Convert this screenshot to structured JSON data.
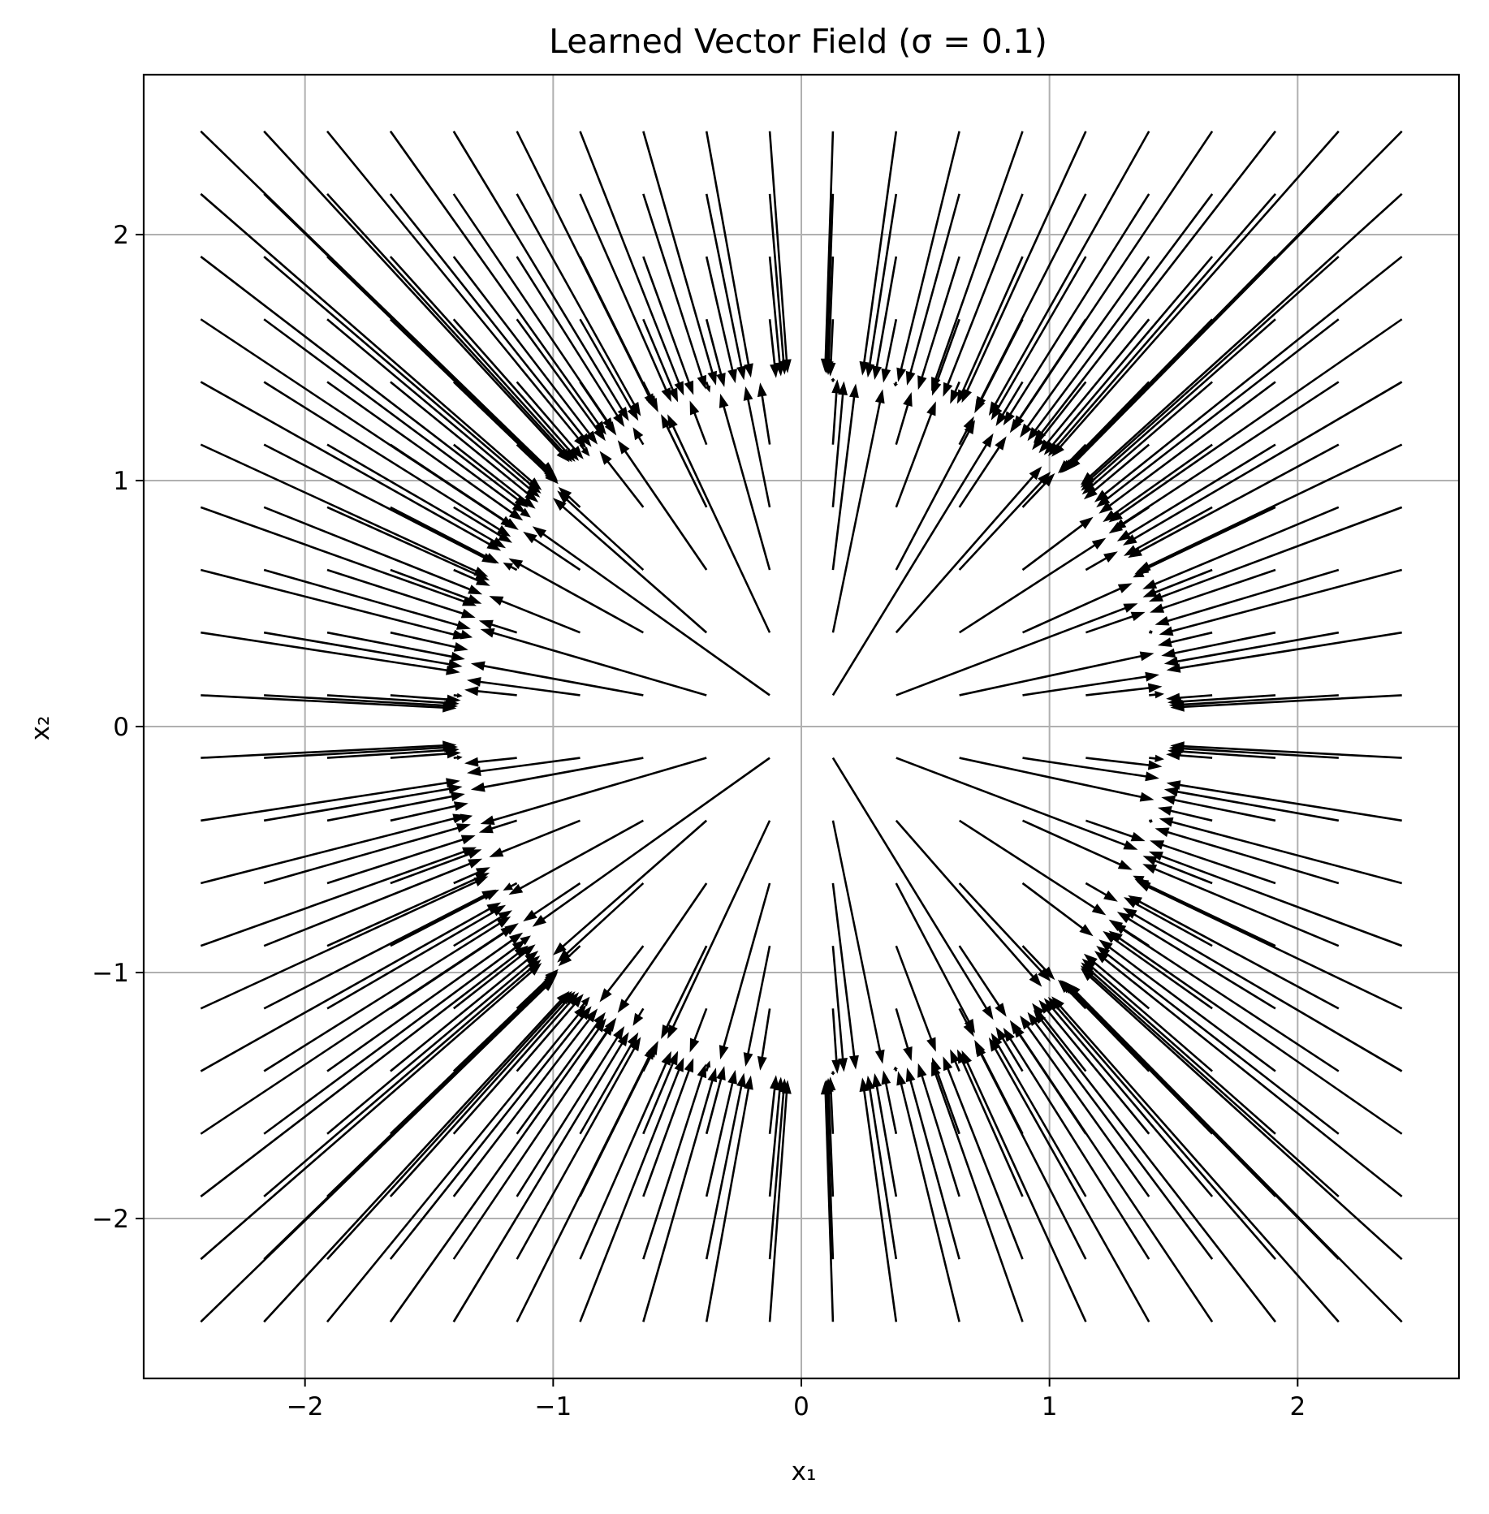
{
  "chart_data": {
    "type": "quiver",
    "title": "Learned Vector Field (σ = 0.1)",
    "xlabel": "x₁",
    "ylabel": "x₂",
    "xlim": [
      -2.65,
      2.65
    ],
    "ylim": [
      -2.65,
      2.65
    ],
    "xticks": [
      -2,
      -1,
      0,
      1,
      2
    ],
    "yticks": [
      -2,
      -1,
      0,
      1,
      2
    ],
    "xtick_labels": [
      "−2",
      "−1",
      "0",
      "1",
      "2"
    ],
    "ytick_labels": [
      "−2",
      "−1",
      "0",
      "1",
      "2"
    ],
    "grid": true,
    "arrow_color": "#000000",
    "field": {
      "description_of_sampling": "regular grid",
      "grid_min": -2.42,
      "grid_max": 2.42,
      "grid_count": 20,
      "flow": "radial convergence toward a ring of radius ~1.4 centered near (0.05, 0.0); vectors outside point inward, vectors inside point outward",
      "ring_radius": 1.42,
      "ring_center": [
        0.05,
        0.0
      ]
    }
  }
}
